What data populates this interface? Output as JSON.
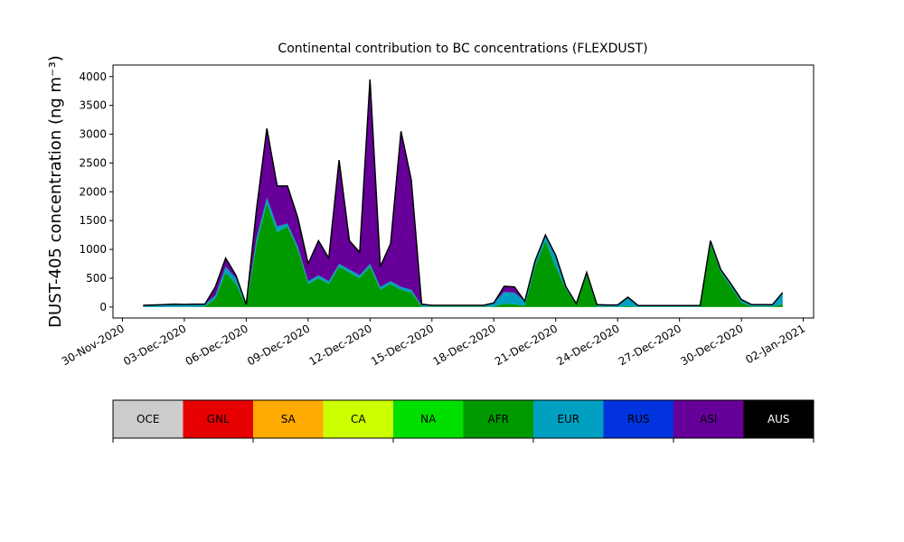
{
  "chart_data": {
    "type": "stacked-area",
    "title": "Continental contribution to BC concentrations (FLEXDUST)",
    "ylabel": "DUST-405 concentration (ng m⁻³)",
    "x": [
      "2020-12-01T00:00",
      "2020-12-01T12:00",
      "2020-12-02T00:00",
      "2020-12-02T12:00",
      "2020-12-03T00:00",
      "2020-12-03T12:00",
      "2020-12-04T00:00",
      "2020-12-04T12:00",
      "2020-12-05T00:00",
      "2020-12-05T12:00",
      "2020-12-06T00:00",
      "2020-12-06T12:00",
      "2020-12-07T00:00",
      "2020-12-07T12:00",
      "2020-12-08T00:00",
      "2020-12-08T12:00",
      "2020-12-09T00:00",
      "2020-12-09T12:00",
      "2020-12-10T00:00",
      "2020-12-10T12:00",
      "2020-12-11T00:00",
      "2020-12-11T12:00",
      "2020-12-12T00:00",
      "2020-12-12T12:00",
      "2020-12-13T00:00",
      "2020-12-13T12:00",
      "2020-12-14T00:00",
      "2020-12-14T12:00",
      "2020-12-15T00:00",
      "2020-12-15T12:00",
      "2020-12-16T00:00",
      "2020-12-16T12:00",
      "2020-12-17T00:00",
      "2020-12-17T12:00",
      "2020-12-18T00:00",
      "2020-12-18T12:00",
      "2020-12-19T00:00",
      "2020-12-19T12:00",
      "2020-12-20T00:00",
      "2020-12-20T12:00",
      "2020-12-21T00:00",
      "2020-12-21T12:00",
      "2020-12-22T00:00",
      "2020-12-22T12:00",
      "2020-12-23T00:00",
      "2020-12-23T12:00",
      "2020-12-24T00:00",
      "2020-12-24T12:00",
      "2020-12-25T00:00",
      "2020-12-25T12:00",
      "2020-12-26T00:00",
      "2020-12-26T12:00",
      "2020-12-27T00:00",
      "2020-12-27T12:00",
      "2020-12-28T00:00",
      "2020-12-28T12:00",
      "2020-12-29T00:00",
      "2020-12-29T12:00",
      "2020-12-30T00:00",
      "2020-12-30T12:00",
      "2020-12-31T00:00",
      "2020-12-31T12:00",
      "2021-01-01T00:00"
    ],
    "series": [
      {
        "name": "AFR",
        "color": "#009900",
        "values": [
          0,
          0,
          0,
          5,
          5,
          5,
          10,
          150,
          600,
          400,
          20,
          1100,
          1800,
          1300,
          1400,
          1000,
          400,
          500,
          400,
          700,
          600,
          500,
          700,
          300,
          400,
          300,
          250,
          10,
          10,
          10,
          10,
          10,
          10,
          10,
          10,
          60,
          50,
          20,
          700,
          1150,
          700,
          300,
          50,
          550,
          10,
          5,
          5,
          20,
          5,
          5,
          5,
          5,
          5,
          5,
          5,
          1100,
          600,
          350,
          80,
          10,
          10,
          10,
          50
        ]
      },
      {
        "name": "EUR",
        "color": "#00a0c0",
        "values": [
          30,
          35,
          40,
          45,
          40,
          45,
          40,
          50,
          100,
          100,
          20,
          100,
          100,
          100,
          50,
          50,
          50,
          50,
          50,
          50,
          50,
          50,
          50,
          50,
          50,
          50,
          50,
          20,
          20,
          20,
          20,
          20,
          20,
          20,
          60,
          200,
          200,
          80,
          100,
          100,
          200,
          50,
          10,
          50,
          30,
          30,
          30,
          150,
          20,
          20,
          20,
          20,
          20,
          20,
          20,
          50,
          50,
          50,
          50,
          30,
          30,
          30,
          200
        ]
      },
      {
        "name": "ASI",
        "color": "#660099",
        "values": [
          0,
          0,
          0,
          0,
          0,
          0,
          0,
          150,
          150,
          50,
          0,
          500,
          1200,
          700,
          650,
          500,
          300,
          600,
          400,
          1800,
          500,
          400,
          3200,
          350,
          650,
          2700,
          1900,
          20,
          0,
          0,
          0,
          0,
          0,
          0,
          0,
          100,
          100,
          0,
          0,
          0,
          0,
          0,
          0,
          0,
          0,
          0,
          0,
          0,
          0,
          0,
          0,
          0,
          0,
          0,
          0,
          0,
          0,
          0,
          0,
          0,
          0,
          0,
          0
        ]
      }
    ],
    "xlim": [
      "2020-11-29T13:00",
      "2021-01-02T12:00"
    ],
    "xticks": [
      {
        "value": "2020-11-30T00:00",
        "label": "30-Nov-2020"
      },
      {
        "value": "2020-12-03T00:00",
        "label": "03-Dec-2020"
      },
      {
        "value": "2020-12-06T00:00",
        "label": "06-Dec-2020"
      },
      {
        "value": "2020-12-09T00:00",
        "label": "09-Dec-2020"
      },
      {
        "value": "2020-12-12T00:00",
        "label": "12-Dec-2020"
      },
      {
        "value": "2020-12-15T00:00",
        "label": "15-Dec-2020"
      },
      {
        "value": "2020-12-18T00:00",
        "label": "18-Dec-2020"
      },
      {
        "value": "2020-12-21T00:00",
        "label": "21-Dec-2020"
      },
      {
        "value": "2020-12-24T00:00",
        "label": "24-Dec-2020"
      },
      {
        "value": "2020-12-27T00:00",
        "label": "27-Dec-2020"
      },
      {
        "value": "2020-12-30T00:00",
        "label": "30-Dec-2020"
      },
      {
        "value": "2021-01-02T00:00",
        "label": "02-Jan-2021"
      }
    ],
    "ylim": [
      -190,
      4200
    ],
    "yticks": [
      0,
      500,
      1000,
      1500,
      2000,
      2500,
      3000,
      3500,
      4000
    ],
    "colorbar": [
      {
        "label": "OCE",
        "color": "#cccccc"
      },
      {
        "label": "GNL",
        "color": "#e60000"
      },
      {
        "label": "SA",
        "color": "#ffaa00"
      },
      {
        "label": "CA",
        "color": "#ccff00"
      },
      {
        "label": "NA",
        "color": "#00e000"
      },
      {
        "label": "AFR",
        "color": "#009900"
      },
      {
        "label": "EUR",
        "color": "#00a0c0"
      },
      {
        "label": "RUS",
        "color": "#0033dd"
      },
      {
        "label": "ASI",
        "color": "#660099"
      },
      {
        "label": "AUS",
        "color": "#000000"
      }
    ]
  }
}
